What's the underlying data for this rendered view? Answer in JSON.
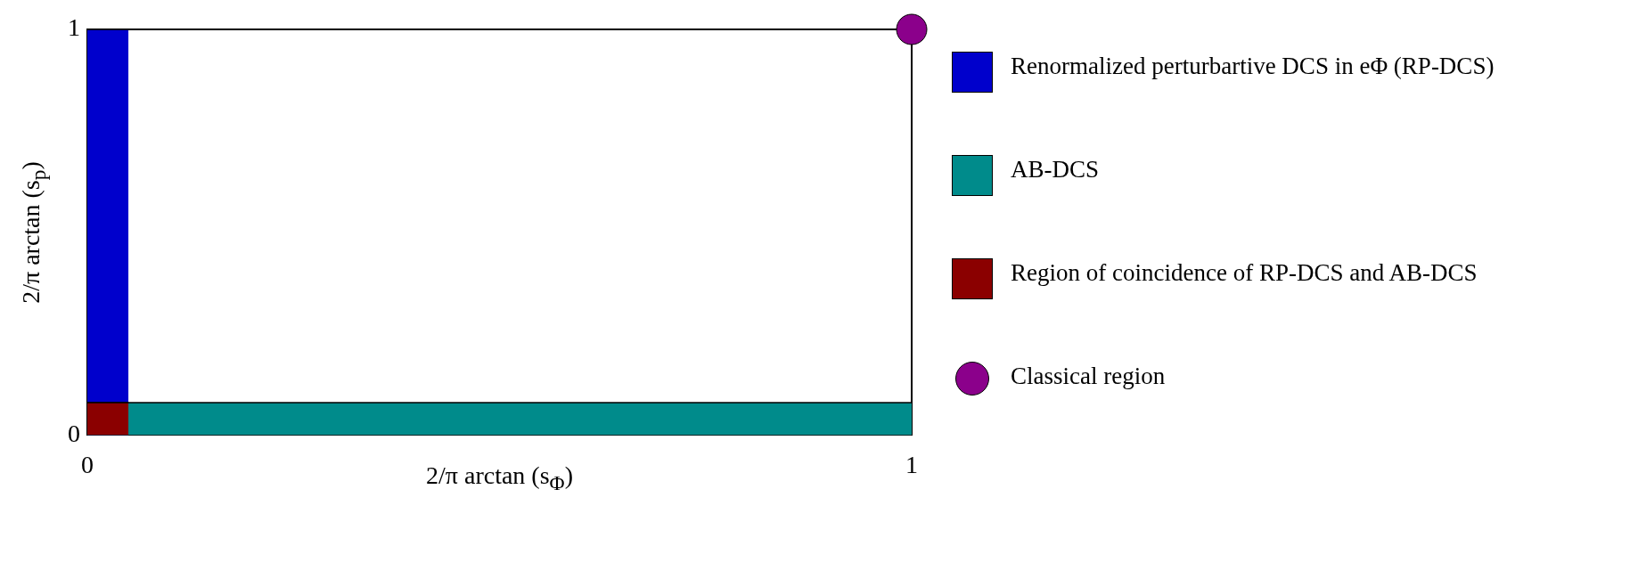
{
  "chart_data": {
    "type": "area",
    "xlabel": "2/π arctan (s$_{Φ}$)",
    "ylabel": "2/π arctan (s$_{p}$)",
    "xlim": [
      0,
      1
    ],
    "ylim": [
      0,
      1
    ],
    "xticks": [
      0,
      1
    ],
    "yticks": [
      0,
      1
    ],
    "legend": "right",
    "series": [
      {
        "name": "Renormalized perturbartive DCS in eΦ (RP-DCS)",
        "color": "#0000cc",
        "x": [
          0,
          0.05
        ],
        "values": [
          1,
          1
        ]
      },
      {
        "name": "AB-DCS",
        "color": "#008b8b",
        "x": [
          0,
          1
        ],
        "values": [
          0.08,
          0.08
        ]
      },
      {
        "name": "Region of coincidence of RP-DCS and AB-DCS",
        "color": "#8b0000",
        "x": [
          0,
          0.05
        ],
        "values": [
          0.08,
          0.08
        ]
      },
      {
        "name": "Classical region",
        "type": "scatter",
        "color": "#8b008b",
        "marker": "circle",
        "x": [
          1
        ],
        "values": [
          1
        ]
      }
    ]
  }
}
